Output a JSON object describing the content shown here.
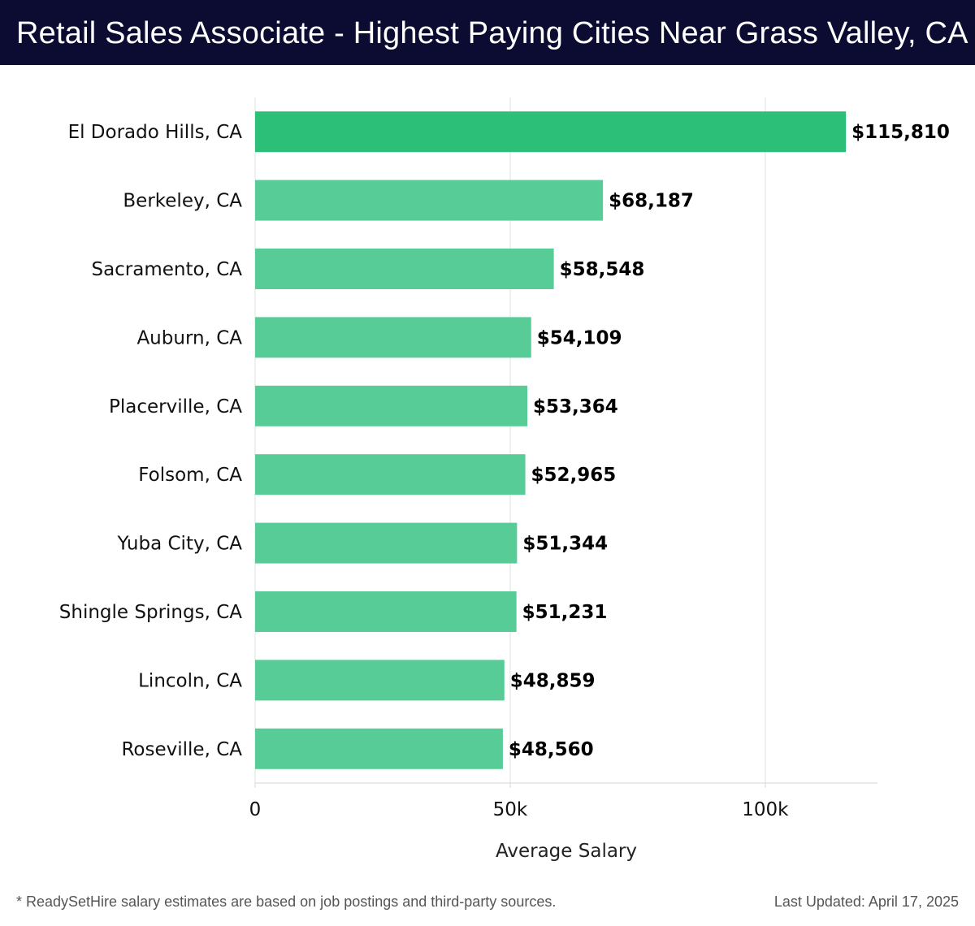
{
  "title": "Retail Sales Associate - Highest Paying Cities Near Grass Valley, CA",
  "footer": {
    "note": "* ReadySetHire salary estimates are based on job postings and third-party sources.",
    "updated": "Last Updated: April 17, 2025"
  },
  "colors": {
    "header_bg": "#0c0c33",
    "top_bar": "#2bbf77",
    "bar": "#57cc96",
    "grid": "#e0e0e0"
  },
  "chart_data": {
    "type": "bar",
    "orientation": "horizontal",
    "categories": [
      "El Dorado Hills, CA",
      "Berkeley, CA",
      "Sacramento, CA",
      "Auburn, CA",
      "Placerville, CA",
      "Folsom, CA",
      "Yuba City, CA",
      "Shingle Springs, CA",
      "Lincoln, CA",
      "Roseville, CA"
    ],
    "values": [
      115810,
      68187,
      58548,
      54109,
      53364,
      52965,
      51344,
      51231,
      48859,
      48560
    ],
    "value_labels": [
      "$115,810",
      "$68,187",
      "$58,548",
      "$54,109",
      "$53,364",
      "$52,965",
      "$51,344",
      "$51,231",
      "$48,859",
      "$48,560"
    ],
    "xlabel": "Average Salary",
    "xticks": [
      0,
      50000,
      100000
    ],
    "xtick_labels": [
      "0",
      "50k",
      "100k"
    ],
    "xlim": [
      0,
      122000
    ],
    "grid": true
  }
}
